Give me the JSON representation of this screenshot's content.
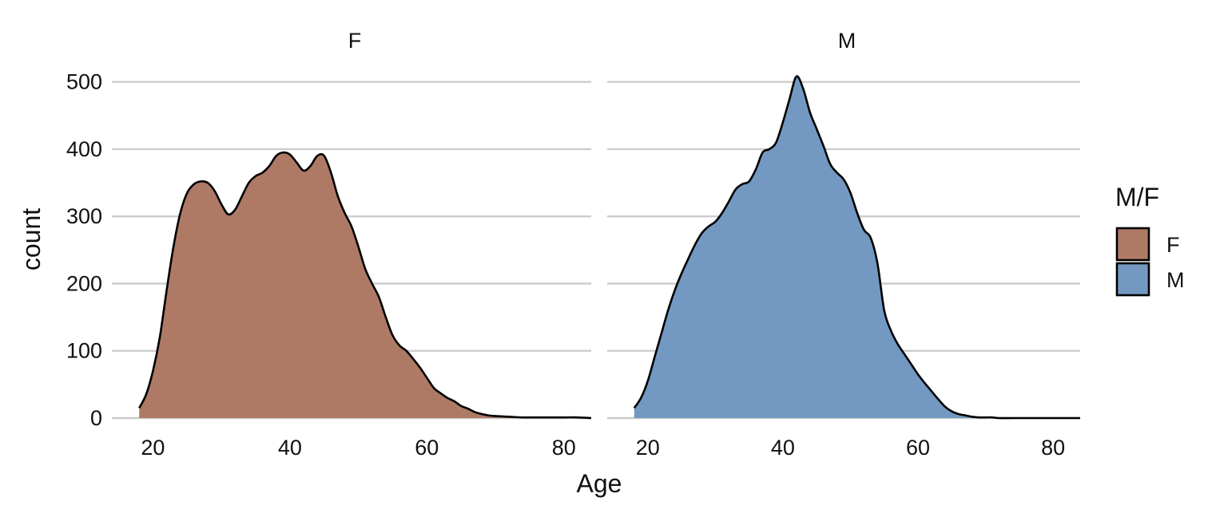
{
  "chart_data": {
    "type": "area",
    "subtype": "faceted density (count)",
    "facets": [
      "F",
      "M"
    ],
    "xlabel": "Age",
    "ylabel": "count",
    "xlim": [
      14,
      84
    ],
    "ylim": [
      0,
      515
    ],
    "x_ticks": [
      20,
      40,
      60,
      80
    ],
    "y_ticks": [
      0,
      100,
      200,
      300,
      400,
      500
    ],
    "grid": "horizontal major only",
    "legend": {
      "title": "M/F",
      "position": "right",
      "entries": [
        {
          "label": "F",
          "color": "#ae7a66"
        },
        {
          "label": "M",
          "color": "#7399c2"
        }
      ]
    },
    "series": [
      {
        "name": "F",
        "color": "#ae7a66",
        "x": [
          18,
          19,
          20,
          21,
          22,
          23,
          24,
          25,
          26,
          27,
          28,
          29,
          30,
          31,
          32,
          33,
          34,
          35,
          36,
          37,
          38,
          39,
          40,
          41,
          42,
          43,
          44,
          45,
          46,
          47,
          48,
          49,
          50,
          51,
          52,
          53,
          54,
          55,
          56,
          57,
          58,
          59,
          60,
          61,
          62,
          63,
          64,
          65,
          66,
          67,
          68,
          69,
          70,
          72,
          74,
          76,
          78,
          80,
          82,
          84
        ],
        "y": [
          15,
          35,
          70,
          120,
          190,
          255,
          305,
          335,
          348,
          352,
          350,
          338,
          318,
          303,
          310,
          330,
          350,
          360,
          365,
          375,
          390,
          395,
          392,
          380,
          368,
          375,
          390,
          390,
          365,
          330,
          305,
          285,
          255,
          222,
          200,
          180,
          150,
          123,
          108,
          100,
          88,
          75,
          60,
          45,
          37,
          30,
          25,
          18,
          14,
          9,
          6,
          4,
          3,
          2,
          1,
          1,
          1,
          1,
          1,
          0
        ]
      },
      {
        "name": "M",
        "color": "#7399c2",
        "x": [
          18,
          19,
          20,
          21,
          22,
          23,
          24,
          25,
          26,
          27,
          28,
          29,
          30,
          31,
          32,
          33,
          34,
          35,
          36,
          37,
          38,
          39,
          40,
          41,
          42,
          43,
          44,
          45,
          46,
          47,
          48,
          49,
          50,
          51,
          52,
          53,
          54,
          55,
          56,
          57,
          58,
          59,
          60,
          61,
          62,
          63,
          64,
          65,
          66,
          67,
          68,
          69,
          70,
          71,
          72,
          74,
          76,
          78,
          80,
          82,
          84
        ],
        "y": [
          15,
          30,
          55,
          90,
          125,
          160,
          190,
          215,
          237,
          258,
          275,
          285,
          292,
          305,
          322,
          340,
          348,
          352,
          370,
          395,
          400,
          410,
          440,
          475,
          508,
          490,
          455,
          430,
          405,
          378,
          365,
          355,
          335,
          305,
          280,
          268,
          230,
          160,
          130,
          110,
          95,
          80,
          65,
          52,
          40,
          28,
          17,
          10,
          6,
          4,
          2,
          1,
          1,
          1,
          0,
          0,
          0,
          0,
          0,
          0,
          0
        ]
      }
    ]
  }
}
